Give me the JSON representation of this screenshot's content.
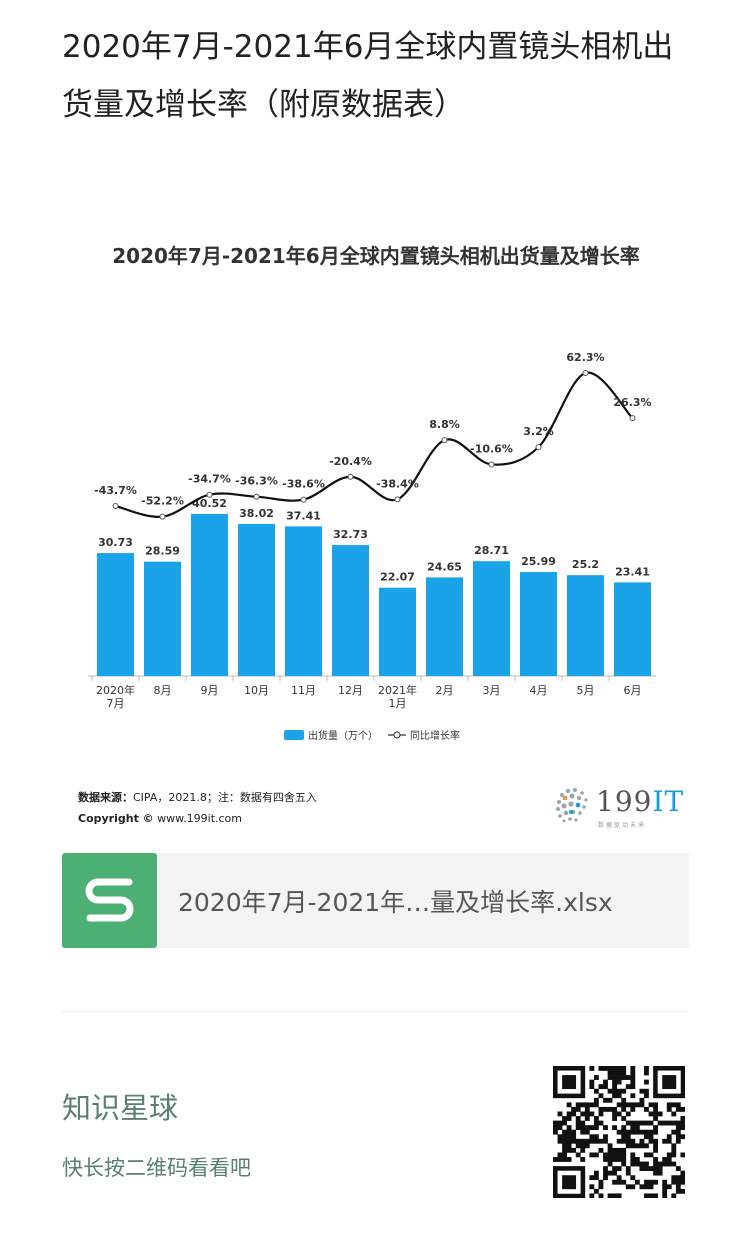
{
  "post": {
    "title": "2020年7月-2021年6月全球内置镜头相机出货量及增长率（附原数据表）"
  },
  "chart_card": {
    "source_label": "数据来源：",
    "source_text": "CIPA，2021.8；注：数据有四舍五入",
    "copyright_label": "Copyright ©",
    "copyright_text": " www.199it.com",
    "logo": {
      "name": "199IT",
      "number_part": "199",
      "it_part": "IT",
      "subtitle": "数据驱动未来",
      "icon": "dotted-sphere-logo"
    }
  },
  "chart_data": {
    "type": "bar",
    "title": "2020年7月-2021年6月全球内置镜头相机出货量及增长率",
    "categories": [
      "2020年\n7月",
      "8月",
      "9月",
      "10月",
      "11月",
      "12月",
      "2021年\n1月",
      "2月",
      "3月",
      "4月",
      "5月",
      "6月"
    ],
    "series": [
      {
        "name": "出货量（万个）",
        "type": "bar",
        "color": "#1aa3e8",
        "values": [
          30.73,
          28.59,
          40.52,
          38.02,
          37.41,
          32.73,
          22.07,
          24.65,
          28.71,
          25.99,
          25.2,
          23.41
        ],
        "labels": [
          "30.73",
          "28.59",
          "40.52",
          "38.02",
          "37.41",
          "32.73",
          "22.07",
          "24.65",
          "28.71",
          "25.99",
          "25.2",
          "23.41"
        ]
      },
      {
        "name": "同比增长率",
        "type": "line",
        "color": "#111111",
        "values": [
          -43.7,
          -52.2,
          -34.7,
          -36.3,
          -38.6,
          -20.4,
          -38.4,
          8.8,
          -10.6,
          3.2,
          62.3,
          26.3
        ],
        "labels": [
          "-43.7%",
          "-52.2%",
          "-34.7%",
          "-36.3%",
          "-38.6%",
          "-20.4%",
          "-38.4%",
          "8.8%",
          "-10.6%",
          "3.2%",
          "62.3%",
          "26.3%"
        ]
      }
    ],
    "legend_position": "bottom-center",
    "grid": false
  },
  "file": {
    "name": "2020年7月-2021年…量及增长率.xlsx",
    "icon": "spreadsheet-s-icon",
    "icon_color": "#4caf73"
  },
  "planet": {
    "name": "知识星球",
    "hint": "快长按二维码看看吧",
    "qr": "qr-code"
  }
}
